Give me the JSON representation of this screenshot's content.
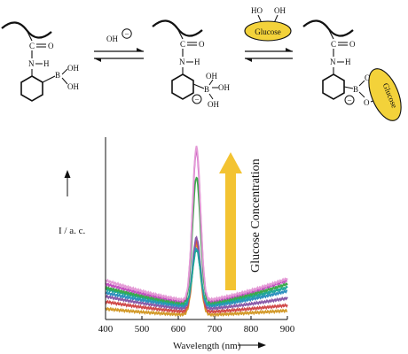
{
  "reaction": {
    "structure_labels": {
      "carbonyl_c": "C",
      "carbonyl_o": "O",
      "amide_n": "N",
      "amide_h": "H",
      "boron": "B",
      "hydroxyl": "OH"
    },
    "reagent_hydroxide": "OH",
    "charge_symbol": "−",
    "glucose_label": "Glucose",
    "glucose_diol_left": "HO",
    "glucose_diol_right": "OH",
    "ester_oxygen": "O"
  },
  "chart_data": {
    "type": "line",
    "title": "",
    "xlabel": "Wavelength (nm)",
    "ylabel": "I / a. c.",
    "xlim": [
      400,
      900
    ],
    "x_ticks": [
      "400",
      "500",
      "600",
      "700",
      "800",
      "900"
    ],
    "annotation": "Glucose Concentration",
    "arrow_color": "#f3c332",
    "peak_center_nm": 650,
    "series": [
      {
        "color": "#d39a2a",
        "baseline_left": 0.06,
        "baseline_right": 0.05,
        "peak": 0.42
      },
      {
        "color": "#d14a4a",
        "baseline_left": 0.1,
        "baseline_right": 0.08,
        "peak": 0.44
      },
      {
        "color": "#8a5aa8",
        "baseline_left": 0.13,
        "baseline_right": 0.12,
        "peak": 0.46
      },
      {
        "color": "#2e8fbf",
        "baseline_left": 0.15,
        "baseline_right": 0.16,
        "peak": 0.4
      },
      {
        "color": "#1fa79a",
        "baseline_left": 0.17,
        "baseline_right": 0.18,
        "peak": 0.39
      },
      {
        "color": "#3aaa4a",
        "baseline_left": 0.18,
        "baseline_right": 0.2,
        "peak": 0.8
      },
      {
        "color": "#c24fbf",
        "baseline_left": 0.2,
        "baseline_right": 0.22,
        "peak": 0.95
      },
      {
        "color": "#e49ad6",
        "baseline_left": 0.22,
        "baseline_right": 0.23,
        "peak": 0.97
      }
    ]
  }
}
